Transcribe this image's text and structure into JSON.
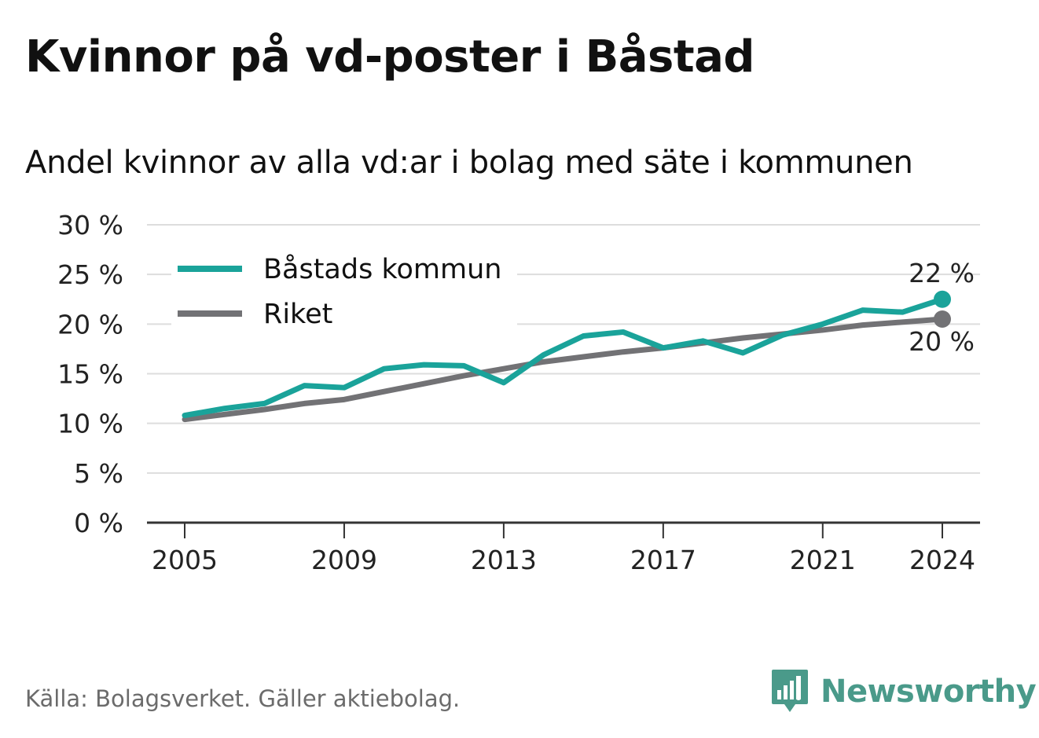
{
  "title": "Kvinnor på vd-poster i Båstad",
  "subtitle": "Andel kvinnor av alla vd:ar i bolag med säte i kommunen",
  "source": "Källa: Bolagsverket. Gäller aktiebolag.",
  "brand": {
    "name": "Newsworthy",
    "icon": "bar-chart-speech-bubble-icon"
  },
  "colors": {
    "bastad": "#1aa39a",
    "riket": "#727275",
    "grid": "#dddddd",
    "axis": "#333333",
    "brand": "#4a9a8a"
  },
  "chart_data": {
    "type": "line",
    "title": "Kvinnor på vd-poster i Båstad",
    "subtitle": "Andel kvinnor av alla vd:ar i bolag med säte i kommunen",
    "xlabel": "",
    "ylabel": "",
    "x": [
      2005,
      2006,
      2007,
      2008,
      2009,
      2010,
      2011,
      2012,
      2013,
      2014,
      2015,
      2016,
      2017,
      2018,
      2019,
      2020,
      2021,
      2022,
      2023,
      2024
    ],
    "ylim": [
      0,
      30
    ],
    "xlim": [
      2005,
      2024
    ],
    "x_ticks": [
      "2005",
      "2009",
      "2013",
      "2017",
      "2021",
      "2024"
    ],
    "y_ticks": [
      "0 %",
      "5 %",
      "10 %",
      "15 %",
      "20 %",
      "25 %",
      "30 %"
    ],
    "grid": true,
    "legend_position": "top-left",
    "series": [
      {
        "name": "Båstads kommun",
        "values": [
          10.8,
          11.5,
          12.0,
          13.8,
          13.6,
          15.5,
          15.9,
          15.8,
          14.1,
          16.9,
          18.8,
          19.2,
          17.6,
          18.3,
          17.1,
          18.9,
          20.0,
          21.4,
          21.2,
          22.5
        ],
        "end_label": "22 %"
      },
      {
        "name": "Riket",
        "values": [
          10.4,
          10.9,
          11.4,
          12.0,
          12.4,
          13.2,
          14.0,
          14.8,
          15.5,
          16.2,
          16.7,
          17.2,
          17.6,
          18.1,
          18.6,
          19.0,
          19.4,
          19.9,
          20.2,
          20.5
        ],
        "end_label": "20 %"
      }
    ]
  }
}
